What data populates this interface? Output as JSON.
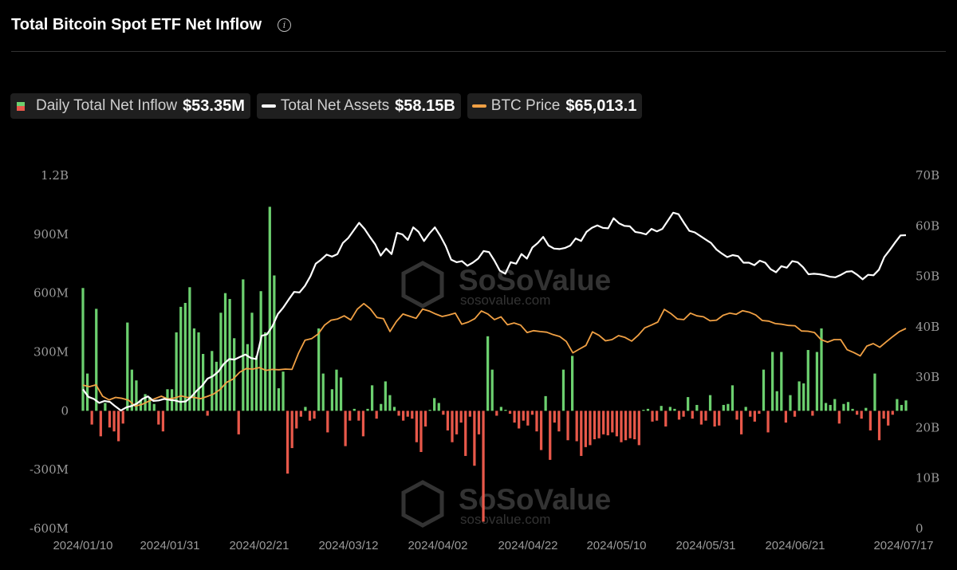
{
  "header": {
    "title": "Total Bitcoin Spot ETF Net Inflow",
    "info_icon": "info-icon"
  },
  "legend": [
    {
      "label": "Daily Total Net Inflow",
      "value": "$53.35M",
      "type": "bars"
    },
    {
      "label": "Total Net Assets",
      "value": "$58.15B",
      "type": "line",
      "color": "#ffffff"
    },
    {
      "label": "BTC Price",
      "value": "$65,013.1",
      "type": "line",
      "color": "#f0a044"
    }
  ],
  "watermark": {
    "brand": "SoSoValue",
    "url": "sosovalue.com"
  },
  "colors": {
    "positive": "#6cd06f",
    "negative": "#e8584a",
    "assets": "#ffffff",
    "price": "#f0a044",
    "background": "#000000"
  },
  "chart_data": {
    "type": "bar",
    "title": "Total Bitcoin Spot ETF Net Inflow",
    "y_left": {
      "range": [
        -600000000,
        1200000000
      ],
      "ticks": [
        "1.2B",
        "900M",
        "600M",
        "300M",
        "0",
        "-300M",
        "-600M"
      ]
    },
    "y_right": {
      "range": [
        0,
        70000000000
      ],
      "ticks": [
        "70B",
        "60B",
        "50B",
        "40B",
        "30B",
        "20B",
        "10B",
        "0"
      ]
    },
    "x_ticks": [
      "2024/01/10",
      "2024/01/31",
      "2024/02/21",
      "2024/03/12",
      "2024/04/02",
      "2024/04/22",
      "2024/05/10",
      "2024/05/31",
      "2024/06/21",
      "2024/07/17"
    ],
    "grid": false,
    "series": [
      {
        "name": "Daily Total Net Inflow",
        "type": "bar",
        "unit": "USD M",
        "values": [
          626,
          190,
          -70,
          520,
          -130,
          40,
          -85,
          -105,
          -155,
          -65,
          450,
          210,
          155,
          55,
          85,
          70,
          35,
          -70,
          -105,
          110,
          110,
          400,
          530,
          550,
          630,
          420,
          400,
          290,
          -25,
          305,
          250,
          500,
          600,
          570,
          370,
          -120,
          670,
          340,
          500,
          280,
          610,
          400,
          1040,
          690,
          115,
          200,
          -320,
          -190,
          -90,
          -30,
          20,
          -50,
          -40,
          420,
          190,
          -110,
          110,
          210,
          170,
          -180,
          -50,
          10,
          -50,
          -130,
          10,
          130,
          -40,
          35,
          150,
          80,
          20,
          -25,
          -50,
          -30,
          -40,
          -160,
          -210,
          -80,
          5,
          65,
          40,
          -20,
          -100,
          -160,
          -120,
          -60,
          -230,
          -30,
          -280,
          -120,
          -565,
          380,
          210,
          -25,
          20,
          5,
          -15,
          -60,
          -90,
          -50,
          -75,
          -20,
          -105,
          -200,
          75,
          -250,
          -60,
          -105,
          210,
          -150,
          280,
          -155,
          -230,
          -185,
          -175,
          -145,
          -140,
          -120,
          -125,
          -110,
          -130,
          -160,
          -150,
          -140,
          -145,
          -175,
          5,
          10,
          -55,
          -50,
          25,
          -80,
          20,
          10,
          -45,
          -30,
          70,
          -40,
          30,
          -70,
          -50,
          80,
          -80,
          -75,
          30,
          35,
          130,
          -45,
          -120,
          20,
          -30,
          -55,
          -15,
          210,
          -110,
          300,
          100,
          300,
          -60,
          80,
          -30,
          150,
          140,
          310,
          -25,
          300,
          420,
          40,
          30,
          60,
          -65,
          35,
          45,
          10,
          -20,
          -40,
          15,
          -100,
          190,
          -150,
          -40,
          -75,
          -20,
          60,
          30,
          53
        ]
      },
      {
        "name": "Total Net Assets",
        "type": "line",
        "unit": "USD B",
        "values": [
          27.6,
          26.1,
          25.7,
          24.9,
          25.3,
          25.1,
          24.2,
          23.4,
          24.0,
          24.3,
          24.8,
          25.7,
          26.2,
          25.3,
          25.4,
          25.7,
          25.5,
          25.4,
          25.1,
          25.2,
          26.1,
          27.3,
          28.3,
          29.7,
          30.2,
          31.1,
          32.6,
          33.6,
          33.5,
          34.0,
          34.5,
          33.8,
          33.6,
          38.2,
          38.5,
          40.1,
          42.5,
          43.8,
          45.4,
          46.9,
          46.8,
          48.1,
          50.0,
          52.5,
          53.3,
          54.3,
          53.9,
          54.4,
          56.6,
          57.6,
          59.1,
          60.6,
          59.4,
          57.8,
          56.3,
          54.1,
          55.5,
          54.4,
          58.6,
          58.3,
          57.2,
          59.7,
          58.8,
          57.0,
          58.5,
          59.7,
          58.0,
          56.0,
          53.3,
          52.8,
          53.0,
          52.1,
          52.7,
          53.5,
          55.0,
          54.8,
          53.1,
          51.1,
          50.5,
          52.8,
          52.5,
          54.4,
          53.5,
          55.7,
          56.6,
          57.8,
          56.1,
          55.5,
          55.4,
          55.6,
          56.1,
          57.5,
          57.0,
          58.8,
          59.6,
          60.1,
          59.6,
          59.5,
          61.5,
          60.5,
          60.0,
          59.9,
          58.8,
          58.6,
          58.3,
          59.4,
          58.9,
          59.4,
          61.0,
          62.6,
          62.3,
          60.6,
          59.0,
          58.7,
          58.0,
          57.3,
          56.6,
          55.3,
          54.5,
          53.8,
          54.2,
          54.0,
          52.7,
          52.7,
          52.2,
          53.1,
          52.7,
          51.4,
          50.8,
          52.0,
          51.7,
          53.0,
          52.8,
          51.8,
          50.4,
          50.5,
          50.4,
          50.2,
          49.9,
          49.8,
          50.3,
          50.9,
          51.0,
          50.3,
          49.4,
          50.3,
          50.2,
          51.3,
          53.8,
          55.2,
          56.7,
          58.1,
          58.15
        ]
      },
      {
        "name": "BTC Price",
        "type": "line",
        "unit": "USD",
        "values": [
          46600,
          46100,
          46700,
          43000,
          41800,
          42600,
          42300,
          41700,
          39800,
          40300,
          41300,
          42200,
          43000,
          42100,
          42400,
          43100,
          42600,
          42600,
          42200,
          42900,
          43700,
          45200,
          47500,
          48600,
          50800,
          52000,
          51800,
          52300,
          51400,
          51700,
          51600,
          51800,
          51700,
          57000,
          61200,
          61700,
          63200,
          66100,
          67700,
          68100,
          69100,
          67800,
          71300,
          73100,
          71400,
          68600,
          68200,
          64000,
          67300,
          69700,
          69000,
          68300,
          71300,
          70700,
          69700,
          68900,
          69400,
          70000,
          66400,
          67100,
          68200,
          70700,
          69700,
          67900,
          68800,
          66200,
          66800,
          66100,
          63700,
          64300,
          64000,
          63800,
          63000,
          62400,
          60800,
          57100,
          58300,
          59500,
          63900,
          62800,
          61000,
          61400,
          62700,
          62100,
          60900,
          62800,
          65200,
          66100,
          67100,
          71200,
          69900,
          68100,
          67900,
          70000,
          69100,
          68800,
          67500,
          67700,
          69300,
          70000,
          69600,
          70800,
          70300,
          69400,
          67600,
          67400,
          66600,
          66400,
          66000,
          65900,
          64200,
          64100,
          63700,
          61400,
          60600,
          61400,
          61400,
          58100,
          57200,
          56100,
          59300,
          60100,
          58900,
          60700,
          62400,
          64000,
          65013
        ]
      }
    ]
  }
}
